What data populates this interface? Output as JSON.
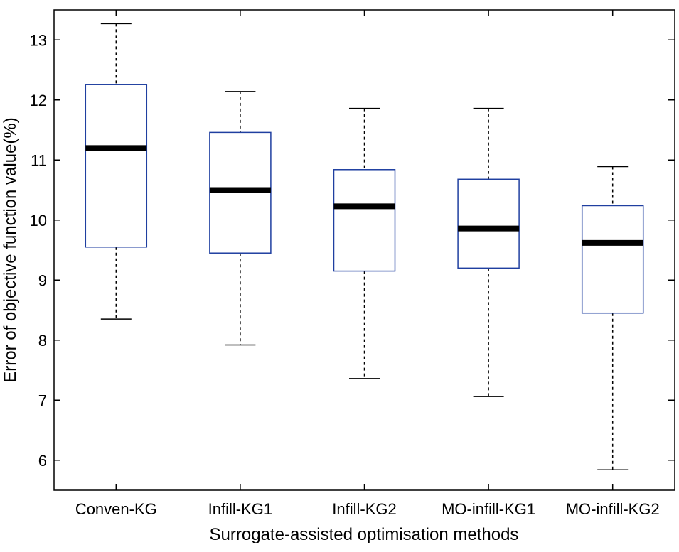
{
  "chart_data": {
    "type": "boxplot",
    "title": "",
    "xlabel": "Surrogate-assisted optimisation methods",
    "ylabel": "Error of objective function value(%)",
    "ylim": [
      5.5,
      13.5
    ],
    "yticks": [
      6,
      7,
      8,
      9,
      10,
      11,
      12,
      13
    ],
    "categories": [
      "Conven-KG",
      "Infill-KG1",
      "Infill-KG2",
      "MO-infill-KG1",
      "MO-infill-KG2"
    ],
    "boxes": [
      {
        "min": 8.35,
        "q1": 9.55,
        "median": 11.2,
        "q3": 12.26,
        "max": 13.27
      },
      {
        "min": 7.92,
        "q1": 9.45,
        "median": 10.5,
        "q3": 11.46,
        "max": 12.14
      },
      {
        "min": 7.36,
        "q1": 9.15,
        "median": 10.23,
        "q3": 10.84,
        "max": 11.86
      },
      {
        "min": 7.06,
        "q1": 9.2,
        "median": 9.86,
        "q3": 10.68,
        "max": 11.86
      },
      {
        "min": 5.84,
        "q1": 8.45,
        "median": 9.62,
        "q3": 10.24,
        "max": 10.89
      }
    ],
    "colors": {
      "box": "#1f3fa0",
      "median": "#000000",
      "whisker": "#000000"
    }
  }
}
